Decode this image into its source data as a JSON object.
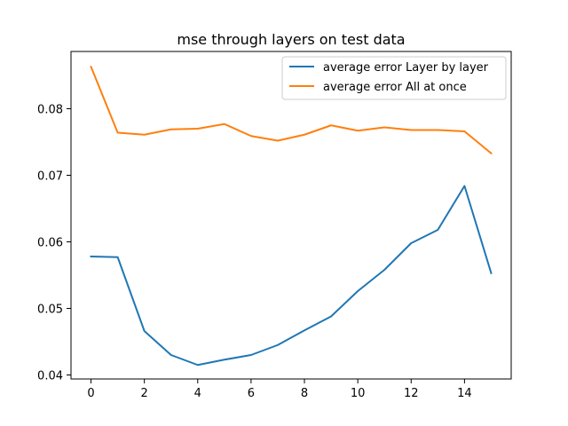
{
  "chart_data": {
    "type": "line",
    "title": "mse through layers on test data",
    "xlabel": "",
    "ylabel": "",
    "x": [
      0,
      1,
      2,
      3,
      4,
      5,
      6,
      7,
      8,
      9,
      10,
      11,
      12,
      13,
      14,
      15
    ],
    "xlim": [
      -0.75,
      15.75
    ],
    "ylim": [
      0.0394,
      0.0886
    ],
    "xticks": [
      0,
      2,
      4,
      6,
      8,
      10,
      12,
      14
    ],
    "yticks": [
      0.04,
      0.05,
      0.06,
      0.07,
      0.08
    ],
    "grid": false,
    "legend_position": "top-right",
    "series": [
      {
        "name": "average error Layer by layer",
        "color": "#1f77b4",
        "values": [
          0.0578,
          0.0577,
          0.0466,
          0.043,
          0.0415,
          0.0423,
          0.043,
          0.0445,
          0.0467,
          0.0488,
          0.0526,
          0.0558,
          0.0598,
          0.0618,
          0.0684,
          0.0553
        ]
      },
      {
        "name": "average error All at once",
        "color": "#ff7f0e",
        "values": [
          0.0863,
          0.0764,
          0.0761,
          0.0769,
          0.077,
          0.0777,
          0.0759,
          0.0752,
          0.0761,
          0.0775,
          0.0767,
          0.0772,
          0.0768,
          0.0768,
          0.0766,
          0.0733
        ]
      }
    ]
  }
}
